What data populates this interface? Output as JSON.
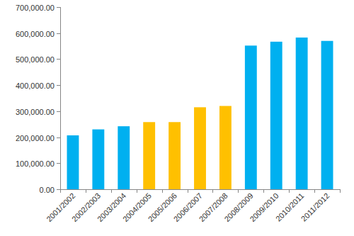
{
  "chart_data": {
    "type": "bar",
    "categories": [
      "2001/2002",
      "2002/2003",
      "2003/2004",
      "2004/2005",
      "2005/2006",
      "2006/2007",
      "2007/2008",
      "2008/2009",
      "2009/2010",
      "2010/2011",
      "2011/2012"
    ],
    "values": [
      207000,
      230000,
      242000,
      258000,
      258000,
      315000,
      320000,
      552000,
      567000,
      583000,
      570000
    ],
    "colors": [
      "#00b0f0",
      "#00b0f0",
      "#00b0f0",
      "#ffc000",
      "#ffc000",
      "#ffc000",
      "#ffc000",
      "#00b0f0",
      "#00b0f0",
      "#00b0f0",
      "#00b0f0"
    ],
    "ylim": [
      0,
      700000
    ],
    "yticks": [
      {
        "value": 0,
        "label": "0.00"
      },
      {
        "value": 100000,
        "label": "100,000.00"
      },
      {
        "value": 200000,
        "label": "200,000.00"
      },
      {
        "value": 300000,
        "label": "300,000.00"
      },
      {
        "value": 400000,
        "label": "400,000.00"
      },
      {
        "value": 500000,
        "label": "500,000.00"
      },
      {
        "value": 600000,
        "label": "600,000.00"
      },
      {
        "value": 700000,
        "label": "700,000.00"
      }
    ],
    "grid": false
  }
}
